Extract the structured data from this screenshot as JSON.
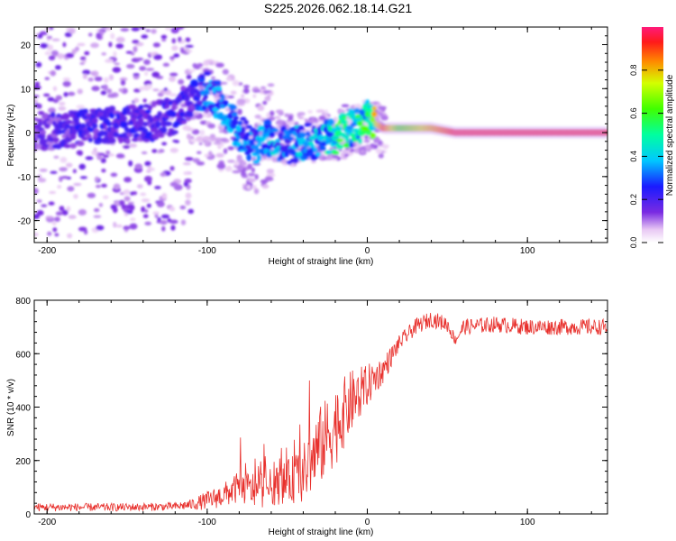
{
  "title": "S225.2026.062.18.14.G21",
  "colors": {
    "snr_line": "#e8302c",
    "spectral_core": "#ff2a2a",
    "scatter": "#8a2be2"
  },
  "chart_data": [
    {
      "type": "heatmap",
      "title": "S225.2026.062.18.14.G21",
      "xlabel": "Height of straight line (km)",
      "ylabel": "Frequency (Hz)",
      "xlim": [
        -208,
        150
      ],
      "ylim": [
        -25,
        24
      ],
      "xticks": [
        -200,
        -100,
        0,
        100
      ],
      "yticks": [
        -20,
        -10,
        0,
        10,
        20
      ],
      "colorbar": {
        "label": "Normalized spectral amplitude",
        "range": [
          0,
          1
        ],
        "ticks": [
          0.0,
          0.2,
          0.4,
          0.6,
          0.8
        ],
        "tick_labels": [
          "0.0",
          "0.2",
          "0.4",
          "0.6",
          "0.8"
        ]
      },
      "ridge": {
        "description_points_x": [
          -205,
          -180,
          -160,
          -140,
          -120,
          -110,
          -100,
          -90,
          -80,
          -70,
          -60,
          -50,
          -40,
          -30,
          -20,
          -10,
          0,
          10,
          20,
          40,
          55,
          80,
          100,
          120,
          150
        ],
        "frequency_hz": [
          0,
          1,
          2,
          2,
          4,
          7,
          10,
          6,
          0,
          -3,
          -1,
          -3,
          -2,
          -2,
          -1,
          1,
          3,
          1,
          1,
          1,
          0,
          0,
          0,
          0,
          0
        ],
        "amplitude": [
          0.15,
          0.2,
          0.2,
          0.2,
          0.2,
          0.2,
          0.3,
          0.3,
          0.3,
          0.3,
          0.35,
          0.3,
          0.35,
          0.35,
          0.5,
          0.45,
          0.5,
          0.9,
          0.6,
          0.8,
          0.95,
          0.95,
          0.95,
          0.95,
          0.95
        ]
      }
    },
    {
      "type": "line",
      "xlabel": "Height of straight line (km)",
      "ylabel": "SNR (10 * v/v)",
      "xlim": [
        -208,
        150
      ],
      "ylim": [
        0,
        800
      ],
      "xticks": [
        -200,
        -100,
        0,
        100
      ],
      "yticks": [
        0,
        200,
        400,
        600,
        800
      ],
      "series": [
        {
          "name": "SNR",
          "x": [
            -208,
            -180,
            -150,
            -120,
            -110,
            -100,
            -90,
            -80,
            -70,
            -60,
            -50,
            -40,
            -30,
            -20,
            -10,
            0,
            10,
            20,
            30,
            40,
            50,
            55,
            60,
            80,
            100,
            120,
            150
          ],
          "y": [
            25,
            25,
            25,
            28,
            35,
            50,
            70,
            100,
            90,
            100,
            120,
            150,
            250,
            330,
            420,
            480,
            540,
            640,
            700,
            730,
            710,
            650,
            700,
            710,
            700,
            700,
            700
          ],
          "noise": [
            15,
            15,
            15,
            15,
            20,
            35,
            45,
            60,
            70,
            70,
            80,
            110,
            150,
            150,
            120,
            80,
            50,
            30,
            30,
            30,
            30,
            20,
            30,
            30,
            30,
            30,
            30
          ]
        }
      ]
    }
  ]
}
